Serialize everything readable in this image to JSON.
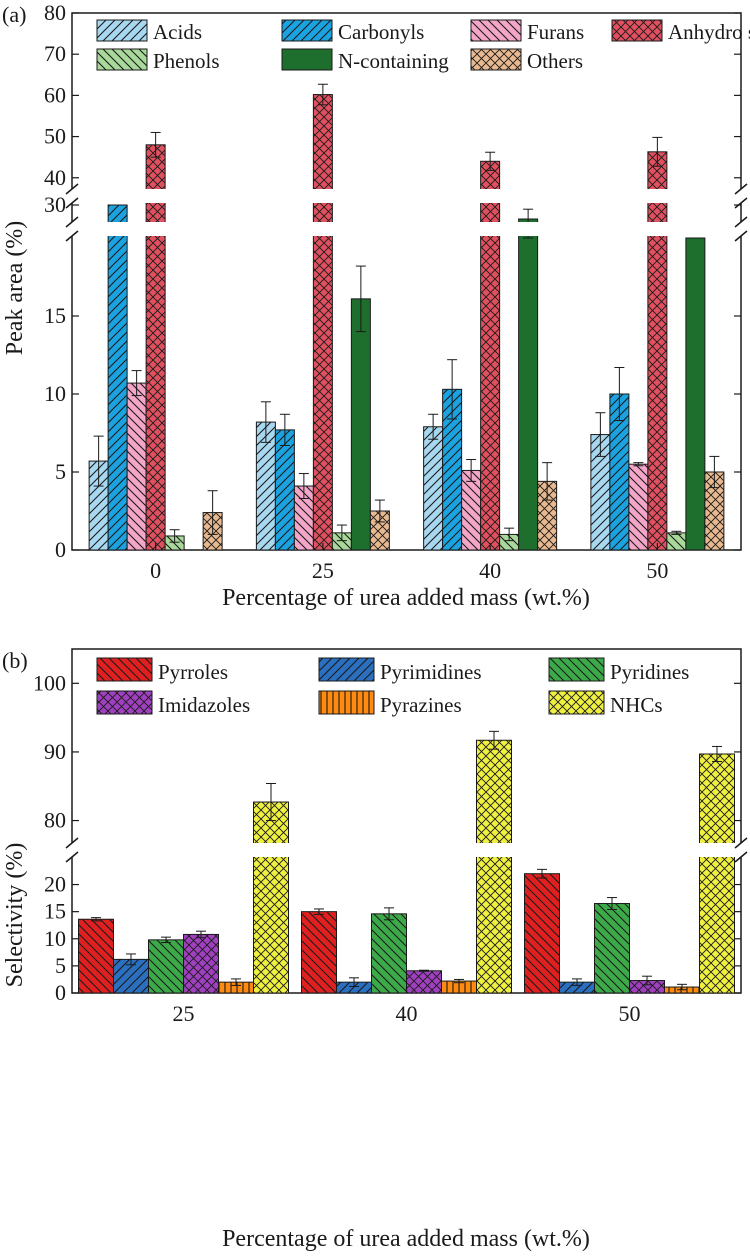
{
  "chart_data": [
    {
      "panel": "(a)",
      "type": "bar",
      "xlabel": "Percentage of urea added mass (wt.%)",
      "ylabel": "Peak area (%)",
      "categories": [
        "0",
        "25",
        "40",
        "50"
      ],
      "broken_axis": {
        "lower_range": [
          0,
          20
        ],
        "upper_range": [
          29,
          30
        ],
        "top_range": [
          38,
          80
        ]
      },
      "ylim": [
        0,
        80
      ],
      "lower_ticks": [
        "0",
        "5",
        "10",
        "15"
      ],
      "upper_ticks": [
        "30"
      ],
      "top_ticks": [
        "40",
        "50",
        "60",
        "70",
        "80"
      ],
      "legend_position": "top",
      "series": [
        {
          "name": "Acids",
          "color": "#a8d8f0",
          "pattern": "diag-up",
          "values": [
            5.7,
            8.2,
            7.9,
            7.4
          ],
          "errors": [
            1.6,
            1.3,
            0.8,
            1.4
          ]
        },
        {
          "name": "Carbonyls",
          "color": "#1aa3e0",
          "pattern": "diag-up",
          "values": [
            31.2,
            7.7,
            10.3,
            10.0
          ],
          "errors": [
            0.5,
            1.0,
            1.9,
            1.7
          ]
        },
        {
          "name": "Furans",
          "color": "#f4a6c8",
          "pattern": "diag-down",
          "values": [
            10.7,
            4.1,
            5.1,
            5.5
          ],
          "errors": [
            0.8,
            0.8,
            0.7,
            0.1
          ]
        },
        {
          "name": "Anhydro sugars",
          "color": "#e0505f",
          "pattern": "cross",
          "values": [
            48.0,
            60.2,
            44.0,
            46.3
          ],
          "errors": [
            3.0,
            2.5,
            2.2,
            3.5
          ]
        },
        {
          "name": "Phenols",
          "color": "#a8d89a",
          "pattern": "diag-down",
          "values": [
            0.9,
            1.1,
            1.0,
            1.1
          ],
          "errors": [
            0.4,
            0.5,
            0.4,
            0.1
          ]
        },
        {
          "name": "N-containing",
          "color": "#1e6e2e",
          "pattern": "solid",
          "values": [
            0,
            16.1,
            29.0,
            28.6
          ],
          "errors": [
            0,
            2.1,
            0.7,
            0.2
          ]
        },
        {
          "name": "Others",
          "color": "#e8b890",
          "pattern": "cross",
          "values": [
            2.4,
            2.5,
            4.4,
            5.0
          ],
          "errors": [
            1.4,
            0.7,
            1.2,
            1.0
          ]
        }
      ]
    },
    {
      "panel": "(b)",
      "type": "bar",
      "xlabel": "Percentage of urea added mass (wt.%)",
      "ylabel": "Selectivity (%)",
      "categories": [
        "25",
        "40",
        "50"
      ],
      "broken_axis": {
        "lower_range": [
          0,
          26
        ],
        "upper_range": [
          76,
          105
        ]
      },
      "ylim": [
        0,
        105
      ],
      "lower_ticks": [
        "0",
        "5",
        "10",
        "15",
        "20"
      ],
      "upper_ticks": [
        "80",
        "90",
        "100"
      ],
      "legend_position": "top",
      "series": [
        {
          "name": "Pyrroles",
          "color": "#e02020",
          "pattern": "diag-down",
          "values": [
            13.6,
            15.0,
            22.0
          ],
          "errors": [
            0.3,
            0.5,
            0.8
          ]
        },
        {
          "name": "Pyrimidines",
          "color": "#2a6fc0",
          "pattern": "diag-up",
          "values": [
            6.2,
            2.0,
            2.0
          ],
          "errors": [
            1.0,
            0.8,
            0.6
          ]
        },
        {
          "name": "Pyridines",
          "color": "#3caa48",
          "pattern": "diag-down",
          "values": [
            9.8,
            14.6,
            16.5
          ],
          "errors": [
            0.5,
            1.1,
            1.1
          ]
        },
        {
          "name": "Imidazoles",
          "color": "#a040c0",
          "pattern": "cross",
          "values": [
            10.8,
            4.1,
            2.3
          ],
          "errors": [
            0.6,
            0.1,
            0.8
          ]
        },
        {
          "name": "Pyrazines",
          "color": "#ff8a10",
          "pattern": "vert",
          "values": [
            2.0,
            2.2,
            1.1
          ],
          "errors": [
            0.6,
            0.3,
            0.5
          ]
        },
        {
          "name": "NHCs",
          "color": "#f0f040",
          "pattern": "cross",
          "values": [
            82.7,
            91.7,
            89.7
          ],
          "errors": [
            2.7,
            1.3,
            1.1
          ]
        }
      ]
    }
  ]
}
